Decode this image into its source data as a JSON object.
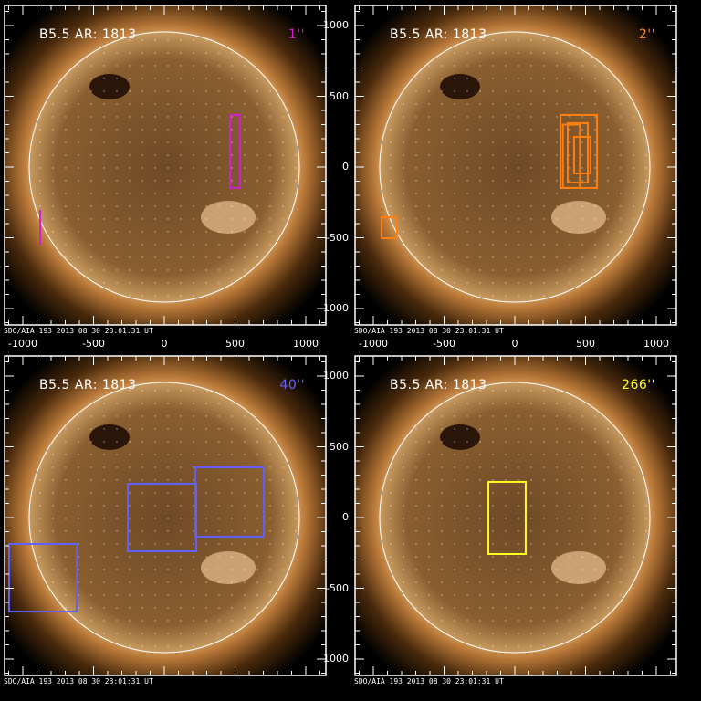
{
  "colors": {
    "frame": "#ffffff",
    "magenta": "#d020d0",
    "orange": "#ff7f10",
    "blue": "#6060ff",
    "yellow": "#ffff20"
  },
  "axis_ticks": {
    "x": [
      "-1000",
      "-500",
      "0",
      "500",
      "1000"
    ],
    "y": [
      "1000",
      "500",
      "0",
      "-500",
      "-1000"
    ]
  },
  "panels": [
    {
      "title": "B5.5 AR: 1813",
      "scale_label": "1''",
      "color": "#d020d0",
      "footer": "SDO/AIA 193  2013 08 30 23:01:31 UT",
      "shapes": [
        {
          "type": "rect",
          "x": [
            465,
            535
          ],
          "y": [
            -148,
            368
          ]
        },
        {
          "type": "line",
          "x": [
            -877,
            -877
          ],
          "y": [
            -548,
            -303
          ]
        }
      ]
    },
    {
      "title": "B5.5 AR: 1813",
      "scale_label": "2''",
      "color": "#ff7f10",
      "footer": "SDO/AIA 193  2013 08 30 23:01:31 UT",
      "shapes": [
        {
          "type": "rect",
          "x": [
            -942,
            -832
          ],
          "y": [
            -503,
            -355
          ]
        },
        {
          "type": "rect",
          "x": [
            323,
            581
          ],
          "y": [
            -148,
            368
          ]
        },
        {
          "type": "rect",
          "x": [
            374,
            516
          ],
          "y": [
            -110,
            310
          ]
        },
        {
          "type": "rect",
          "x": [
            419,
            535
          ],
          "y": [
            -45,
            213
          ]
        },
        {
          "type": "rect",
          "x": [
            340,
            460
          ],
          "y": [
            -148,
            300
          ]
        }
      ]
    },
    {
      "title": "B5.5 AR: 1813",
      "scale_label": "40''",
      "color": "#6060ff",
      "footer": "SDO/AIA 193  2013 08 30 23:01:31 UT",
      "shapes": [
        {
          "type": "rect",
          "x": [
            -258,
            226
          ],
          "y": [
            -239,
            239
          ]
        },
        {
          "type": "rect",
          "x": [
            219,
            703
          ],
          "y": [
            -135,
            355
          ]
        },
        {
          "type": "rect",
          "x": [
            -1097,
            -619
          ],
          "y": [
            -665,
            -187
          ]
        }
      ]
    },
    {
      "title": "B5.5 AR: 1813",
      "scale_label": "266''",
      "color": "#ffff20",
      "footer": "SDO/AIA 193  2013 08 30 23:01:31 UT",
      "shapes": [
        {
          "type": "rect",
          "x": [
            -187,
            77
          ],
          "y": [
            -258,
            252
          ]
        }
      ]
    }
  ]
}
